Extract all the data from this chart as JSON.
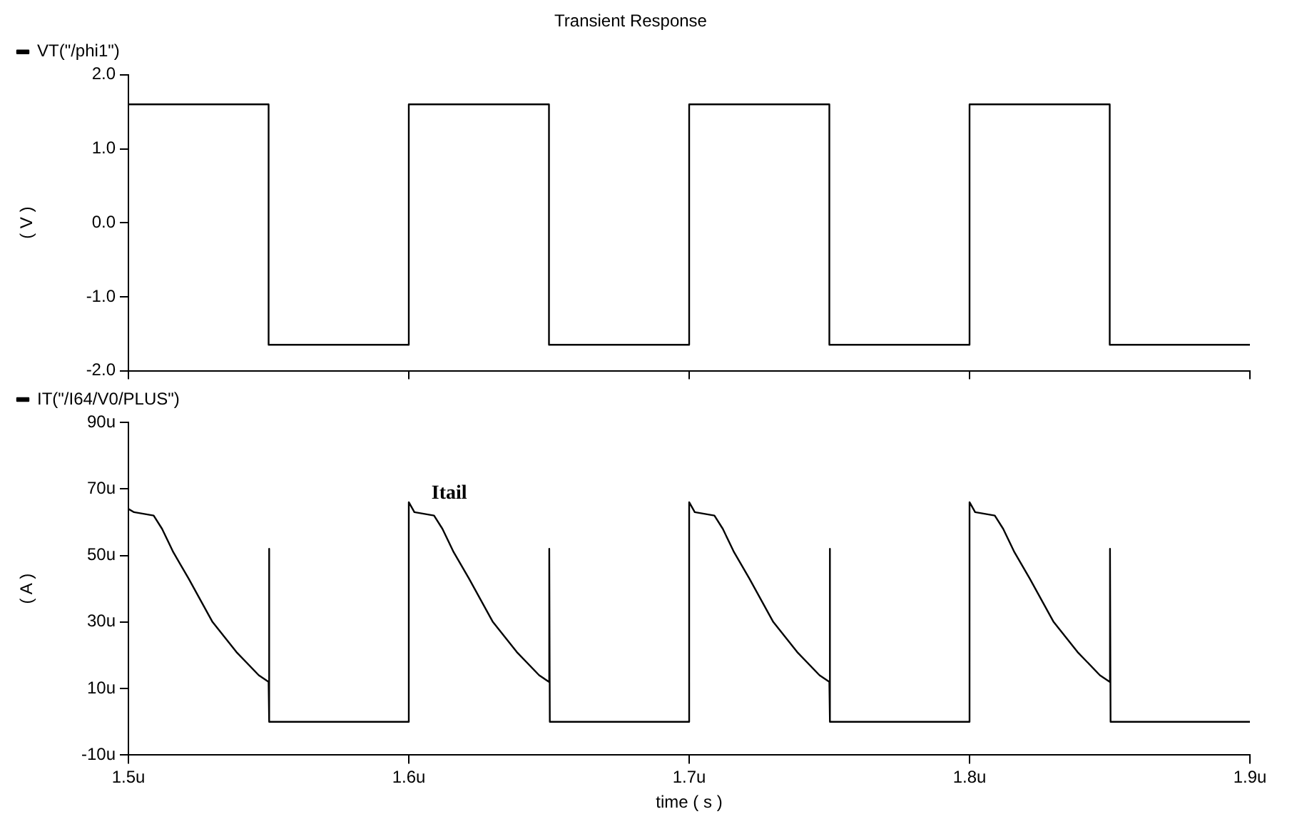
{
  "chart_data": [
    {
      "type": "line",
      "title": "Transient Response",
      "ylabel": "( V )",
      "x": [
        1.5,
        1.55,
        1.55,
        1.6,
        1.6,
        1.65,
        1.65,
        1.7,
        1.7,
        1.75,
        1.75,
        1.8,
        1.8,
        1.85,
        1.85,
        1.9
      ],
      "series": [
        {
          "name": "VT(\"/phi1\")",
          "color": "#000000",
          "values": [
            1.6,
            1.6,
            -1.65,
            -1.65,
            1.6,
            1.6,
            -1.65,
            -1.65,
            1.6,
            1.6,
            -1.65,
            -1.65,
            1.6,
            1.6,
            -1.65,
            -1.65
          ]
        }
      ],
      "xlim": [
        1.5,
        1.9
      ],
      "xticks": [
        {
          "value": 1.5,
          "label": null
        },
        {
          "value": 1.6,
          "label": null
        },
        {
          "value": 1.7,
          "label": null
        },
        {
          "value": 1.8,
          "label": null
        },
        {
          "value": 1.9,
          "label": null
        }
      ],
      "ylim": [
        -2,
        2
      ],
      "yticks": [
        {
          "value": -2,
          "label": "-2.0"
        },
        {
          "value": -1,
          "label": "-1.0"
        },
        {
          "value": 0,
          "label": "0.0"
        },
        {
          "value": 1,
          "label": "1.0"
        },
        {
          "value": 2,
          "label": "2.0"
        }
      ],
      "tick_labels": "y",
      "grid": false,
      "legend": "top left",
      "marker": "none",
      "line_style": "solid"
    },
    {
      "type": "line",
      "xlabel": "time ( s )",
      "ylabel": "( A )",
      "annotations": [
        {
          "text": "Itail",
          "x": 1.602,
          "y": 63
        }
      ],
      "x": [
        1.5,
        1.502,
        1.509,
        1.512,
        1.516,
        1.5215,
        1.53,
        1.5385,
        1.5465,
        1.55,
        1.5501,
        1.5503,
        1.6,
        1.6,
        1.602,
        1.609,
        1.612,
        1.616,
        1.6215,
        1.63,
        1.6385,
        1.6465,
        1.65,
        1.6501,
        1.6503,
        1.7,
        1.7,
        1.702,
        1.709,
        1.712,
        1.716,
        1.7215,
        1.73,
        1.7385,
        1.7465,
        1.75,
        1.7501,
        1.7503,
        1.8,
        1.8,
        1.802,
        1.809,
        1.812,
        1.816,
        1.8215,
        1.83,
        1.8385,
        1.8465,
        1.85,
        1.8501,
        1.8503,
        1.9
      ],
      "series": [
        {
          "name": "IT(\"/I64/V0/PLUS\")",
          "color": "#000000",
          "values": [
            64,
            63,
            62,
            58,
            51,
            43,
            30,
            21,
            14,
            12,
            52,
            0,
            0,
            66,
            63,
            62,
            58,
            51,
            43,
            30,
            21,
            14,
            12,
            52,
            0,
            0,
            66,
            63,
            62,
            58,
            51,
            43,
            30,
            21,
            14,
            12,
            52,
            0,
            0,
            66,
            63,
            62,
            58,
            51,
            43,
            30,
            21,
            14,
            12,
            52,
            0,
            0
          ]
        }
      ],
      "xlim": [
        1.5,
        1.9
      ],
      "xticks": [
        {
          "value": 1.5,
          "label": "1.5u"
        },
        {
          "value": 1.6,
          "label": "1.6u"
        },
        {
          "value": 1.7,
          "label": "1.7u"
        },
        {
          "value": 1.8,
          "label": "1.8u"
        },
        {
          "value": 1.9,
          "label": "1.9u"
        }
      ],
      "ylim": [
        -10,
        90
      ],
      "yticks": [
        {
          "value": -10,
          "label": "-10u"
        },
        {
          "value": 10,
          "label": "10u"
        },
        {
          "value": 30,
          "label": "30u"
        },
        {
          "value": 50,
          "label": "50u"
        },
        {
          "value": 70,
          "label": "70u"
        },
        {
          "value": 90,
          "label": "90u"
        }
      ],
      "grid": false,
      "legend": "top left",
      "marker": "none",
      "line_style": "solid"
    }
  ]
}
